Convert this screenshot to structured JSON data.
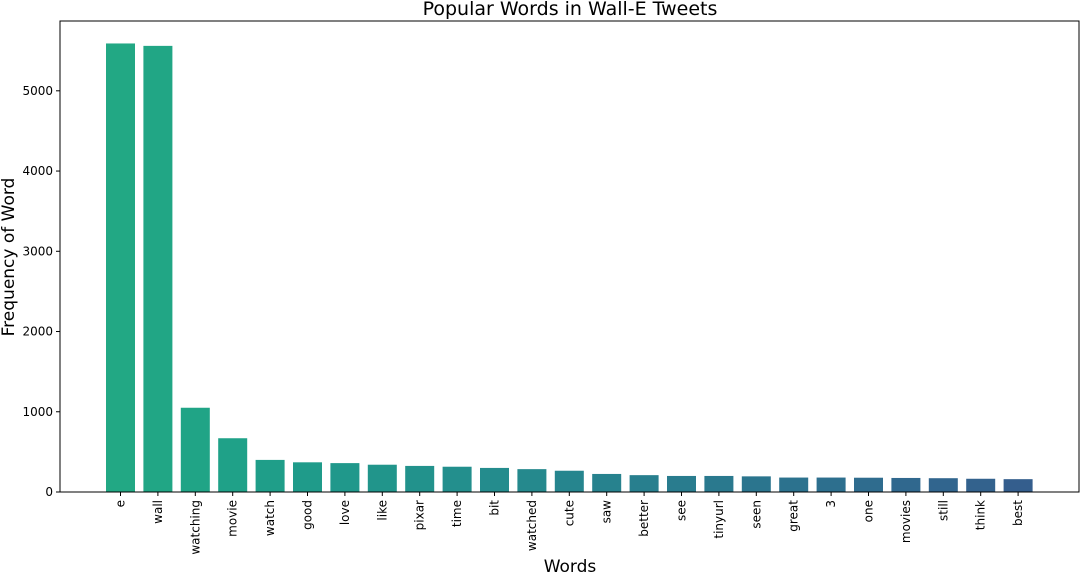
{
  "chart_data": {
    "type": "bar",
    "title": "Popular Words in Wall-E Tweets",
    "xlabel": "Words",
    "ylabel": "Frequency of Word",
    "categories": [
      "e",
      "wall",
      "watching",
      "movie",
      "watch",
      "good",
      "love",
      "like",
      "pixar",
      "time",
      "bit",
      "watched",
      "cute",
      "saw",
      "better",
      "see",
      "tinyurl",
      "seen",
      "great",
      "3",
      "one",
      "movies",
      "still",
      "think",
      "best"
    ],
    "values": [
      5590,
      5560,
      1050,
      670,
      400,
      370,
      360,
      340,
      325,
      315,
      300,
      285,
      265,
      225,
      210,
      200,
      200,
      195,
      180,
      180,
      178,
      175,
      172,
      165,
      160
    ],
    "ylim": [
      0,
      5870
    ],
    "yticks": [
      0,
      1000,
      2000,
      3000,
      4000,
      5000
    ],
    "grid": false,
    "legend": "none",
    "colors": [
      "#22a884",
      "#21a685",
      "#20a486",
      "#1fa188",
      "#1f9e89",
      "#1f9b8a",
      "#20988b",
      "#21958b",
      "#22928c",
      "#238f8d",
      "#248c8d",
      "#25898d",
      "#26858e",
      "#27828e",
      "#287f8e",
      "#297c8e",
      "#2a798e",
      "#2b758e",
      "#2c728e",
      "#2d6f8e",
      "#2f6c8e",
      "#30688e",
      "#31658e",
      "#33628d",
      "#345e8d"
    ]
  }
}
